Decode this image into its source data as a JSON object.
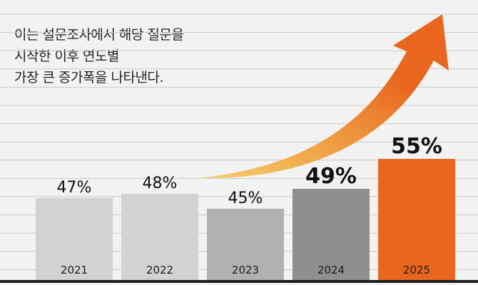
{
  "caption": {
    "lines": [
      "이는 설문조사에서 해당 질문을",
      "시작한 이후 연도별",
      "가장 큰 증가폭을 나타낸다."
    ]
  },
  "chart_data": {
    "type": "bar",
    "categories": [
      "2021",
      "2022",
      "2023",
      "2024",
      "2025"
    ],
    "values": [
      47,
      48,
      45,
      49,
      55
    ],
    "value_labels": [
      "47%",
      "48%",
      "45%",
      "49%",
      "55%"
    ],
    "emphasized_labels": [
      false,
      false,
      false,
      true,
      true
    ],
    "title": "",
    "xlabel": "",
    "ylabel": "",
    "grid": true,
    "colors": [
      "#d2d2d2",
      "#d2d2d2",
      "#b1b1b1",
      "#8f8f8f",
      "#e8661e"
    ],
    "annotation": "upward-trend-arrow",
    "arrow_colors": [
      "#f6b21a",
      "#e8661e"
    ]
  }
}
